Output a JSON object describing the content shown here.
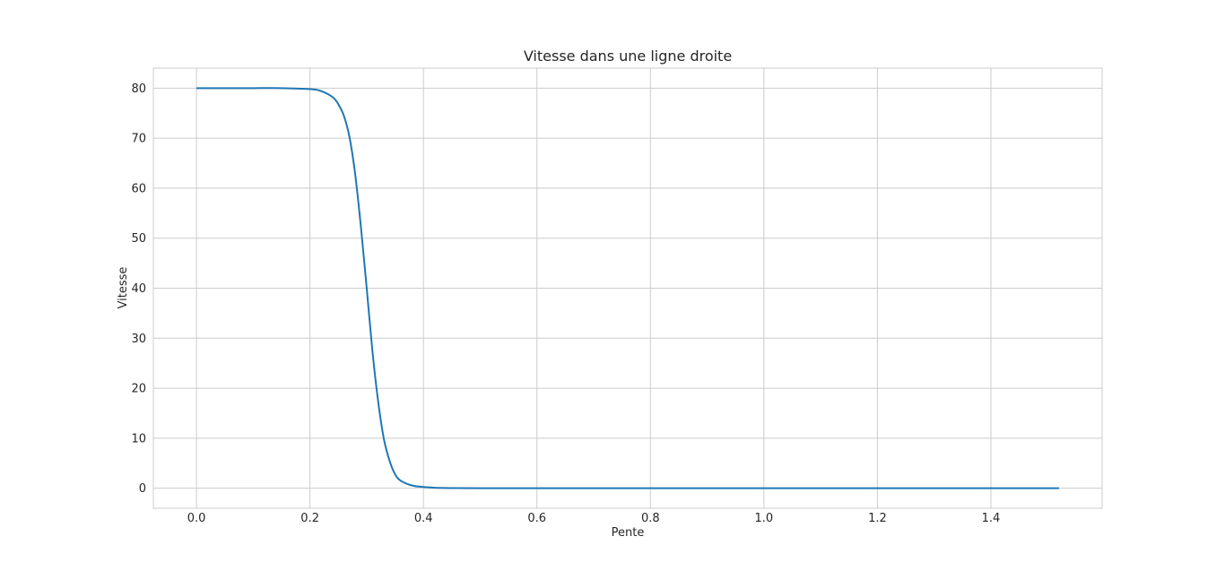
{
  "chart_data": {
    "type": "line",
    "title": "Vitesse dans une ligne droite",
    "xlabel": "Pente",
    "ylabel": "Vitesse",
    "xlim": [
      -0.076,
      1.596
    ],
    "ylim": [
      -4.0,
      84.0
    ],
    "xticks": [
      0.0,
      0.2,
      0.4,
      0.6,
      0.8,
      1.0,
      1.2,
      1.4
    ],
    "xtick_labels": [
      "0.0",
      "0.2",
      "0.4",
      "0.6",
      "0.8",
      "1.0",
      "1.2",
      "1.4"
    ],
    "yticks": [
      0,
      10,
      20,
      30,
      40,
      50,
      60,
      70,
      80
    ],
    "ytick_labels": [
      "0",
      "10",
      "20",
      "30",
      "40",
      "50",
      "60",
      "70",
      "80"
    ],
    "grid": true,
    "series": [
      {
        "color": "#1f77b4",
        "x": [
          0.0,
          0.05,
          0.1,
          0.15,
          0.2,
          0.22,
          0.24,
          0.25,
          0.26,
          0.27,
          0.28,
          0.29,
          0.3,
          0.31,
          0.32,
          0.33,
          0.34,
          0.35,
          0.36,
          0.38,
          0.4,
          0.42,
          0.45,
          0.5,
          0.6,
          0.8,
          1.0,
          1.2,
          1.4,
          1.52
        ],
        "y": [
          80.0,
          80.0,
          80.0,
          80.0,
          79.8,
          79.4,
          78.2,
          76.8,
          74.4,
          70.0,
          62.5,
          52.0,
          40.0,
          27.5,
          17.5,
          10.0,
          5.6,
          2.8,
          1.5,
          0.55,
          0.25,
          0.1,
          0.04,
          0.01,
          0.0,
          0.0,
          0.0,
          0.0,
          0.0,
          0.0
        ]
      }
    ]
  }
}
